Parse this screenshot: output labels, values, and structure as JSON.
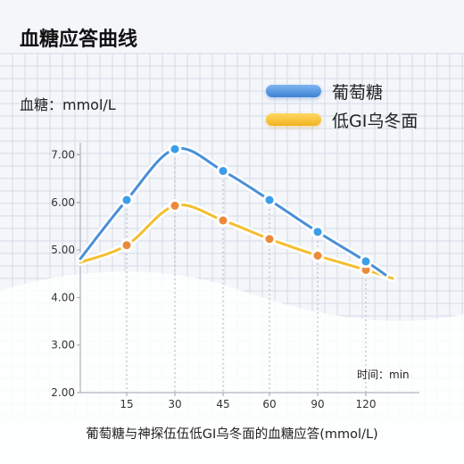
{
  "title": "血糖应答曲线",
  "caption": "葡萄糖与神探伍伍低GI乌冬面的血糖应答(mmol/L)",
  "colors": {
    "series_a": "#4a8fd8",
    "series_b": "#f5be2e",
    "point_a": "#3a9ee8",
    "point_b": "#ec8a3c"
  },
  "chart_data": {
    "type": "line",
    "title": "血糖应答曲线",
    "ylabel": "血糖：mmol/L",
    "xlabel": "时间：min",
    "ylim": [
      2.0,
      7.5
    ],
    "yticks": [
      "2.00",
      "3.00",
      "4.00",
      "5.00",
      "6.00",
      "7.00"
    ],
    "ytick_values": [
      2,
      3,
      4,
      5,
      6,
      7
    ],
    "x": [
      15,
      30,
      45,
      60,
      90,
      120
    ],
    "xtick_labels": [
      "15",
      "30",
      "45",
      "60",
      "90",
      "120"
    ],
    "grid": true,
    "legend": "top-right",
    "series": [
      {
        "name": "葡萄糖",
        "values": [
          6.05,
          7.12,
          6.66,
          6.05,
          5.38,
          4.76
        ]
      },
      {
        "name": "低GI乌冬面",
        "values": [
          5.1,
          5.93,
          5.62,
          5.23,
          4.88,
          4.58
        ]
      }
    ]
  }
}
